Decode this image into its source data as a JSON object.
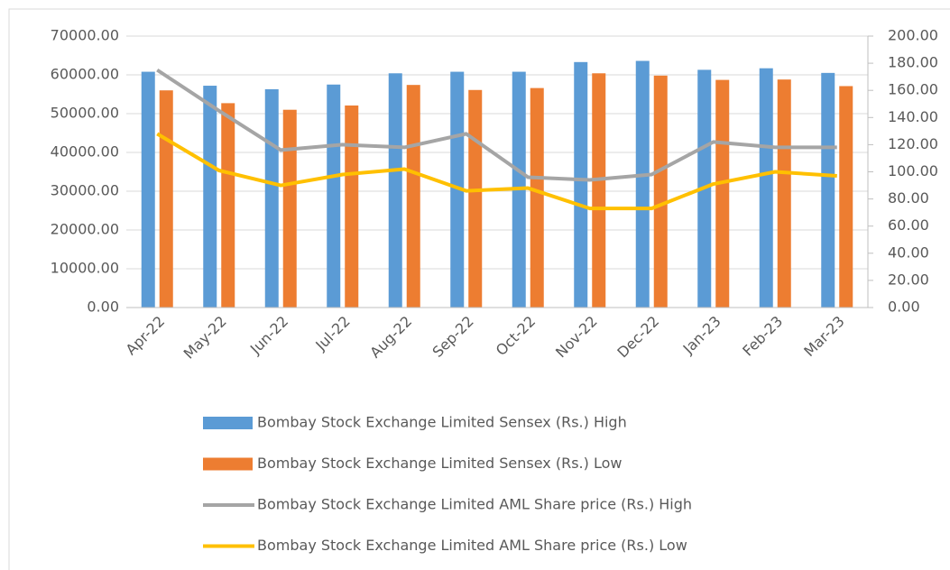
{
  "chart_data": {
    "type": "bar",
    "categories": [
      "Apr-22",
      "May-22",
      "Jun-22",
      "Jul-22",
      "Aug-22",
      "Sep-22",
      "Oct-22",
      "Nov-22",
      "Dec-22",
      "Jan-23",
      "Feb-23",
      "Mar-23"
    ],
    "series": [
      {
        "name": "Bombay Stock Exchange Limited Sensex (Rs.) High",
        "type": "bar",
        "color": "#5b9bd5",
        "values": [
          60800,
          57200,
          56300,
          57500,
          60400,
          60800,
          60800,
          63300,
          63600,
          61300,
          61700,
          60500
        ]
      },
      {
        "name": "Bombay Stock Exchange Limited Sensex (Rs.) Low",
        "type": "bar",
        "color": "#ed7d31",
        "values": [
          56000,
          52700,
          51000,
          52100,
          57400,
          56100,
          56600,
          60400,
          59800,
          58700,
          58800,
          57100
        ]
      },
      {
        "name": "Bombay Stock Exchange Limited AML Share price (Rs.) High",
        "type": "line",
        "axis": "y2",
        "color": "#a5a5a5",
        "values": [
          175,
          145,
          116,
          120,
          118,
          128,
          96,
          94,
          98,
          122,
          118,
          118
        ]
      },
      {
        "name": "Bombay Stock Exchange Limited AML Share price (Rs.) Low",
        "type": "line",
        "axis": "y2",
        "color": "#ffc000",
        "values": [
          128,
          101,
          90,
          98,
          102,
          86,
          88,
          73,
          73,
          91,
          100,
          97
        ]
      }
    ],
    "ylim": [
      0,
      70000
    ],
    "yticks": [
      {
        "value": 0,
        "label": "0.00"
      },
      {
        "value": 10000,
        "label": "10000.00"
      },
      {
        "value": 20000,
        "label": "20000.00"
      },
      {
        "value": 30000,
        "label": "30000.00"
      },
      {
        "value": 40000,
        "label": "40000.00"
      },
      {
        "value": 50000,
        "label": "50000.00"
      },
      {
        "value": 60000,
        "label": "60000.00"
      },
      {
        "value": 70000,
        "label": "70000.00"
      }
    ],
    "y2lim": [
      0,
      200
    ],
    "y2ticks": [
      {
        "value": 0,
        "label": "0.00"
      },
      {
        "value": 20,
        "label": "20.00"
      },
      {
        "value": 40,
        "label": "40.00"
      },
      {
        "value": 60,
        "label": "60.00"
      },
      {
        "value": 80,
        "label": "80.00"
      },
      {
        "value": 100,
        "label": "100.00"
      },
      {
        "value": 120,
        "label": "120.00"
      },
      {
        "value": 140,
        "label": "140.00"
      },
      {
        "value": 160,
        "label": "160.00"
      },
      {
        "value": 180,
        "label": "180.00"
      },
      {
        "value": 200,
        "label": "200.00"
      }
    ],
    "legend": "bottom"
  }
}
